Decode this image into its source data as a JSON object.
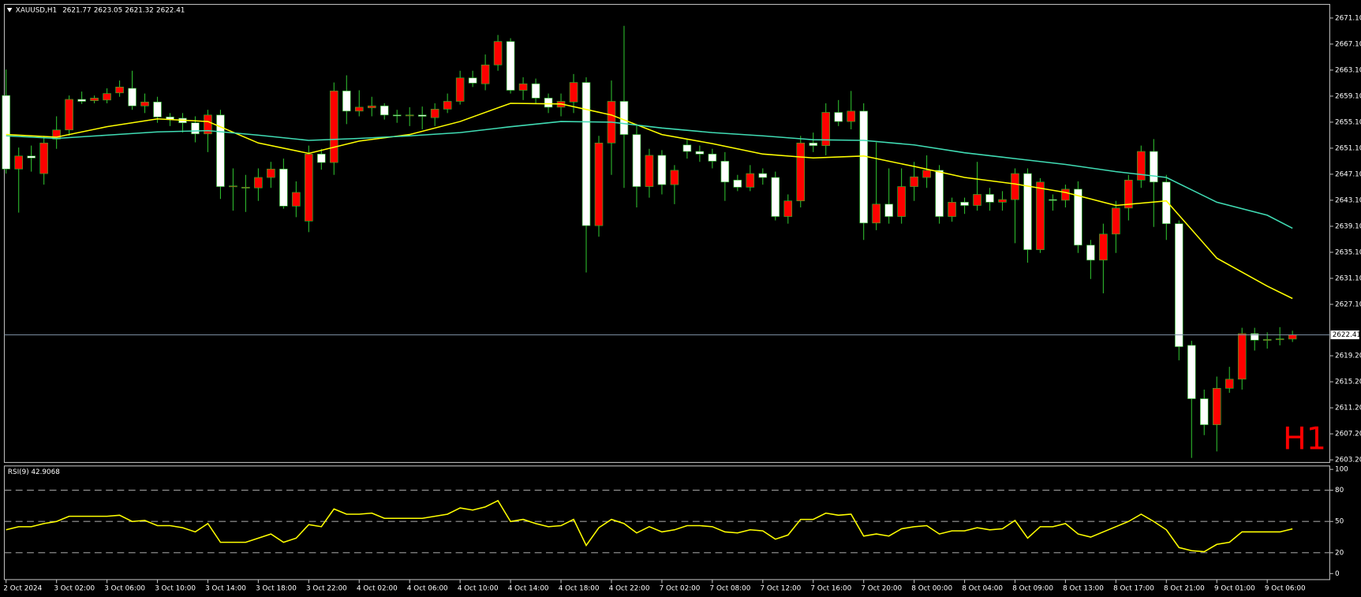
{
  "chart_data": [
    {
      "type": "candlestick",
      "title": "XAUUSD,H1",
      "watermark": "H1",
      "categories": [
        "2 Oct 2024",
        null,
        null,
        null,
        "3 Oct 02:00",
        null,
        null,
        null,
        "3 Oct 06:00",
        null,
        null,
        null,
        "3 Oct 10:00",
        null,
        null,
        null,
        "3 Oct 14:00",
        null,
        null,
        null,
        "3 Oct 18:00",
        null,
        null,
        null,
        "3 Oct 22:00",
        null,
        null,
        null,
        "4 Oct 02:00",
        null,
        null,
        null,
        "4 Oct 06:00",
        null,
        null,
        null,
        "4 Oct 10:00",
        null,
        null,
        null,
        "4 Oct 14:00",
        null,
        null,
        null,
        "4 Oct 18:00",
        null,
        null,
        null,
        "4 Oct 22:00",
        null,
        null,
        null,
        "7 Oct 02:00",
        null,
        null,
        null,
        "7 Oct 08:00",
        null,
        null,
        null,
        "7 Oct 12:00",
        null,
        null,
        null,
        "7 Oct 16:00",
        null,
        null,
        null,
        "7 Oct 20:00",
        null,
        null,
        null,
        "8 Oct 00:00",
        null,
        null,
        null,
        "8 Oct 04:00",
        null,
        null,
        null,
        "8 Oct 09:00",
        null,
        null,
        null,
        "8 Oct 13:00",
        null,
        null,
        null,
        "8 Oct 17:00",
        null,
        null,
        null,
        "8 Oct 21:00",
        null,
        null,
        null,
        "9 Oct 01:00",
        null,
        null,
        null,
        "9 Oct 06:00",
        null,
        null
      ],
      "open": [
        2659.2,
        2647.9,
        2649.9,
        2647.2,
        2652.5,
        2653.9,
        2658.6,
        2658.4,
        2658.5,
        2659.6,
        2660.3,
        2657.6,
        2658.2,
        2655.9,
        2655.7,
        2655.0,
        2653.3,
        2656.2,
        2645.2,
        2645.0,
        2645.0,
        2646.6,
        2647.9,
        2642.2,
        2639.9,
        2650.2,
        2648.9,
        2659.9,
        2656.8,
        2657.3,
        2657.6,
        2656.2,
        2656.1,
        2656.2,
        2655.8,
        2657.1,
        2658.3,
        2661.9,
        2661.0,
        2663.9,
        2667.5,
        2660.0,
        2661.0,
        2658.8,
        2657.4,
        2658.2,
        2661.2,
        2639.2,
        2651.9,
        2658.3,
        2653.2,
        2645.2,
        2650.0,
        2645.5,
        2651.6,
        2650.6,
        2650.2,
        2649.1,
        2646.2,
        2645.1,
        2647.2,
        2646.6,
        2640.6,
        2643.0,
        2651.9,
        2651.5,
        2656.6,
        2655.2,
        2656.8,
        2639.6,
        2642.5,
        2640.6,
        2645.2,
        2646.6,
        2647.7,
        2640.6,
        2642.8,
        2642.3,
        2644.0,
        2642.8,
        2643.2,
        2647.2,
        2635.5,
        2643.2,
        2643.1,
        2644.8,
        2636.2,
        2633.9,
        2637.9,
        2641.9,
        2646.2,
        2650.6,
        2645.9,
        2639.5,
        2620.8,
        2612.6,
        2608.6,
        2614.2,
        2615.6,
        2622.6,
        2621.6,
        2621.7,
        2621.77
      ],
      "high": [
        2663.2,
        2651.2,
        2651.5,
        2653.0,
        2656.0,
        2659.2,
        2659.8,
        2659.2,
        2660.3,
        2661.5,
        2663.0,
        2659.5,
        2659.0,
        2656.5,
        2656.5,
        2656.0,
        2657.0,
        2657.0,
        2648.0,
        2647.0,
        2648.0,
        2649.0,
        2649.5,
        2646.0,
        2651.5,
        2651.0,
        2661.2,
        2662.3,
        2660.0,
        2659.0,
        2658.0,
        2657.0,
        2657.4,
        2657.5,
        2658.0,
        2659.5,
        2663.0,
        2663.0,
        2665.5,
        2668.5,
        2668.0,
        2662.0,
        2661.8,
        2659.5,
        2659.5,
        2662.5,
        2662.0,
        2653.0,
        2661.5,
        2669.9,
        2654.8,
        2651.0,
        2650.8,
        2648.5,
        2652.5,
        2651.5,
        2651.0,
        2650.5,
        2647.0,
        2648.5,
        2648.0,
        2647.5,
        2644.0,
        2653.0,
        2653.5,
        2658.0,
        2658.5,
        2659.9,
        2658.0,
        2652.0,
        2648.0,
        2648.0,
        2649.0,
        2650.0,
        2648.5,
        2643.5,
        2643.5,
        2649.0,
        2645.0,
        2644.5,
        2648.0,
        2648.0,
        2646.5,
        2644.0,
        2645.5,
        2646.0,
        2637.0,
        2639.5,
        2643.0,
        2647.0,
        2651.5,
        2652.5,
        2647.0,
        2640.0,
        2621.5,
        2614.0,
        2616.0,
        2617.5,
        2623.5,
        2623.5,
        2622.8,
        2623.6,
        2623.05
      ],
      "low": [
        2647.2,
        2641.2,
        2647.5,
        2645.5,
        2651.0,
        2653.0,
        2657.9,
        2658.0,
        2658.0,
        2659.0,
        2657.0,
        2656.5,
        2655.0,
        2654.5,
        2653.5,
        2652.0,
        2650.5,
        2643.3,
        2641.5,
        2641.3,
        2643.0,
        2645.0,
        2641.8,
        2640.5,
        2638.2,
        2647.8,
        2647.0,
        2654.8,
        2656.0,
        2656.0,
        2655.5,
        2655.0,
        2654.5,
        2654.0,
        2654.5,
        2656.5,
        2657.8,
        2660.5,
        2660.0,
        2663.0,
        2659.5,
        2658.5,
        2658.0,
        2656.5,
        2656.0,
        2656.5,
        2632.0,
        2637.5,
        2647.0,
        2645.0,
        2642.0,
        2643.5,
        2644.0,
        2642.5,
        2649.5,
        2649.0,
        2648.0,
        2643.0,
        2644.5,
        2644.5,
        2645.5,
        2640.0,
        2639.5,
        2642.0,
        2650.5,
        2650.0,
        2654.5,
        2654.0,
        2637.0,
        2638.5,
        2639.5,
        2639.5,
        2643.0,
        2645.0,
        2639.5,
        2639.8,
        2641.0,
        2641.5,
        2641.5,
        2641.5,
        2636.5,
        2633.5,
        2635.0,
        2641.5,
        2642.0,
        2635.0,
        2631.0,
        2628.8,
        2635.0,
        2640.0,
        2645.0,
        2639.0,
        2637.0,
        2618.5,
        2603.5,
        2607.0,
        2604.5,
        2613.5,
        2614.0,
        2620.0,
        2620.3,
        2620.8,
        2621.32
      ],
      "close": [
        2647.9,
        2649.9,
        2649.6,
        2651.9,
        2653.9,
        2658.6,
        2658.3,
        2658.8,
        2659.5,
        2660.5,
        2657.6,
        2658.2,
        2655.9,
        2655.5,
        2655.0,
        2653.3,
        2656.2,
        2645.2,
        2645.3,
        2645.1,
        2646.6,
        2647.9,
        2642.2,
        2644.3,
        2650.2,
        2648.9,
        2659.9,
        2656.8,
        2657.4,
        2657.6,
        2656.2,
        2656.1,
        2656.2,
        2656.0,
        2657.1,
        2658.3,
        2661.9,
        2661.1,
        2663.9,
        2667.5,
        2660.0,
        2661.0,
        2658.8,
        2657.4,
        2658.3,
        2661.2,
        2639.2,
        2651.9,
        2658.3,
        2653.2,
        2645.2,
        2650.0,
        2645.5,
        2647.7,
        2650.6,
        2650.2,
        2649.1,
        2645.9,
        2645.1,
        2647.2,
        2646.6,
        2640.6,
        2643.0,
        2651.9,
        2651.5,
        2656.6,
        2655.2,
        2656.8,
        2639.6,
        2642.5,
        2640.6,
        2645.2,
        2646.7,
        2647.7,
        2640.6,
        2642.8,
        2642.3,
        2644.0,
        2642.8,
        2643.2,
        2647.2,
        2635.5,
        2645.9,
        2643.1,
        2644.8,
        2636.2,
        2633.9,
        2637.9,
        2641.9,
        2646.2,
        2650.6,
        2645.9,
        2639.5,
        2620.6,
        2612.6,
        2608.6,
        2614.2,
        2615.6,
        2622.6,
        2621.6,
        2621.7,
        2621.8,
        2622.41
      ],
      "up_color": "#ff0000",
      "down_color": "#ffffff",
      "wick_color": "#2db82d",
      "price_line_color": "#7f93a6",
      "lines": [
        {
          "color": "#ffff00",
          "x": [
            0,
            4,
            8,
            12,
            16,
            20,
            24,
            28,
            32,
            36,
            40,
            44,
            48,
            52,
            56,
            60,
            64,
            68,
            72,
            76,
            80,
            84,
            88,
            92,
            96,
            100,
            102
          ],
          "values": [
            2653.2,
            2652.8,
            2654.4,
            2655.6,
            2655.2,
            2651.9,
            2650.3,
            2652.2,
            2653.2,
            2655.2,
            2658.0,
            2657.9,
            2656.2,
            2653.2,
            2651.8,
            2650.2,
            2649.6,
            2649.9,
            2648.3,
            2646.6,
            2645.6,
            2644.3,
            2642.3,
            2643.0,
            2634.2,
            2629.9,
            2628.0
          ]
        },
        {
          "color": "#40dcb4",
          "x": [
            0,
            4,
            8,
            12,
            16,
            20,
            24,
            28,
            32,
            36,
            40,
            44,
            48,
            52,
            56,
            60,
            64,
            68,
            72,
            76,
            80,
            84,
            88,
            92,
            96,
            100,
            102
          ],
          "values": [
            2653.0,
            2652.6,
            2653.1,
            2653.6,
            2653.8,
            2653.1,
            2652.3,
            2652.6,
            2653.0,
            2653.5,
            2654.4,
            2655.2,
            2655.1,
            2654.2,
            2653.5,
            2653.0,
            2652.4,
            2652.3,
            2651.6,
            2650.4,
            2649.5,
            2648.6,
            2647.5,
            2646.6,
            2642.8,
            2640.8,
            2638.8
          ]
        }
      ],
      "ylim": [
        2602.8,
        2673.2
      ],
      "yticks": [
        {
          "value": 2671.1,
          "label": "2671.10"
        },
        {
          "value": 2667.1,
          "label": "2667.10"
        },
        {
          "value": 2663.1,
          "label": "2663.10"
        },
        {
          "value": 2659.1,
          "label": "2659.10"
        },
        {
          "value": 2655.1,
          "label": "2655.10"
        },
        {
          "value": 2651.1,
          "label": "2651.10"
        },
        {
          "value": 2647.1,
          "label": "2647.10"
        },
        {
          "value": 2643.1,
          "label": "2643.10"
        },
        {
          "value": 2639.1,
          "label": "2639.10"
        },
        {
          "value": 2635.1,
          "label": "2635.10"
        },
        {
          "value": 2631.1,
          "label": "2631.10"
        },
        {
          "value": 2627.1,
          "label": "2627.10"
        },
        {
          "value": 2619.2,
          "label": "2619.20"
        },
        {
          "value": 2615.2,
          "label": "2615.20"
        },
        {
          "value": 2611.2,
          "label": "2611.20"
        },
        {
          "value": 2607.2,
          "label": "2607.20"
        },
        {
          "value": 2603.2,
          "label": "2603.20"
        }
      ]
    },
    {
      "type": "line",
      "title": "RSI(9) 42.9068",
      "color": "#ffff00",
      "values": [
        42,
        45,
        45,
        48,
        50,
        55,
        55,
        55,
        55,
        56,
        50,
        51,
        46,
        46,
        44,
        40,
        48,
        30,
        30,
        30,
        34,
        38,
        30,
        34,
        47,
        45,
        62,
        57,
        57,
        58,
        53,
        53,
        53,
        53,
        55,
        57,
        63,
        61,
        64,
        70,
        50,
        52,
        48,
        45,
        46,
        52,
        27,
        44,
        52,
        48,
        39,
        45,
        40,
        42,
        46,
        46,
        45,
        40,
        39,
        42,
        41,
        33,
        37,
        52,
        52,
        58,
        56,
        57,
        36,
        38,
        36,
        43,
        45,
        46,
        38,
        41,
        41,
        44,
        42,
        43,
        51,
        34,
        45,
        45,
        48,
        38,
        35,
        40,
        45,
        50,
        57,
        50,
        42,
        25,
        22,
        21,
        28,
        30,
        40,
        40,
        40,
        40,
        42.9
      ],
      "levels": [
        20,
        50,
        80
      ],
      "ylim": [
        -5.8,
        103.3
      ],
      "yticks": [
        0,
        20,
        50,
        80,
        100
      ]
    }
  ]
}
